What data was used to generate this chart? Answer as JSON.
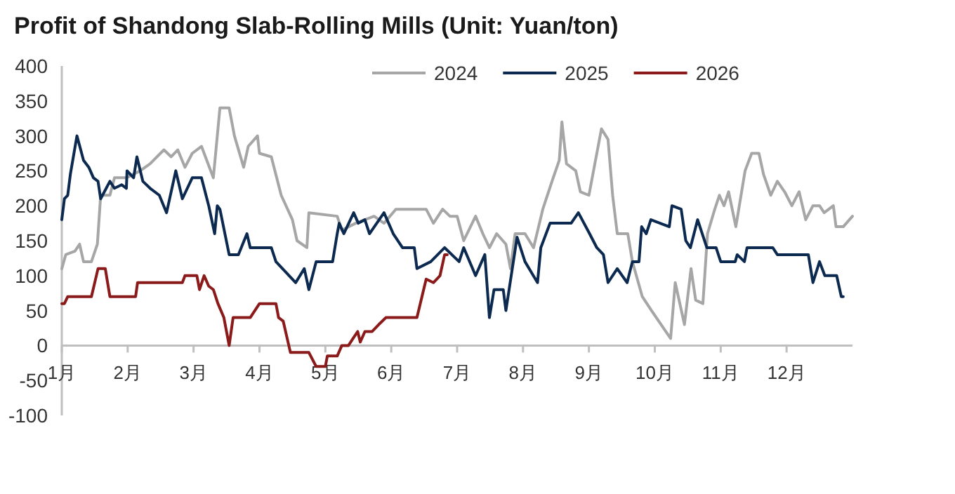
{
  "chart_data": {
    "type": "line",
    "title": "Profit of Shandong Slab-Rolling Mills (Unit: Yuan/ton)",
    "xlim": [
      1,
      13
    ],
    "xticks": [
      {
        "value": 1,
        "label": "1月"
      },
      {
        "value": 2,
        "label": "2月"
      },
      {
        "value": 3,
        "label": "3月"
      },
      {
        "value": 4,
        "label": "4月"
      },
      {
        "value": 5,
        "label": "5月"
      },
      {
        "value": 6,
        "label": "6月"
      },
      {
        "value": 7,
        "label": "7月"
      },
      {
        "value": 8,
        "label": "8月"
      },
      {
        "value": 9,
        "label": "9月"
      },
      {
        "value": 10,
        "label": "10月"
      },
      {
        "value": 11,
        "label": "11月"
      },
      {
        "value": 12,
        "label": "12月"
      }
    ],
    "ylim": [
      -100,
      400
    ],
    "yticks": [
      -100,
      -50,
      0,
      50,
      100,
      150,
      200,
      250,
      300,
      350,
      400
    ],
    "grid": false,
    "legend": "top",
    "series": [
      {
        "name": "2024",
        "color": "#a6a6a6",
        "x": [
          1.0,
          1.06,
          1.2,
          1.27,
          1.33,
          1.45,
          1.54,
          1.59,
          1.73,
          1.8,
          1.98,
          2.19,
          2.34,
          2.55,
          2.66,
          2.76,
          2.87,
          2.98,
          3.12,
          3.3,
          3.4,
          3.54,
          3.62,
          3.76,
          3.83,
          3.97,
          4.0,
          4.18,
          4.33,
          4.5,
          4.57,
          4.72,
          4.75,
          5.18,
          5.25,
          5.46,
          5.74,
          5.89,
          6.07,
          6.53,
          6.64,
          6.78,
          6.89,
          7.0,
          7.1,
          7.28,
          7.39,
          7.49,
          7.6,
          7.74,
          7.81,
          7.88,
          8.03,
          8.16,
          8.3,
          8.44,
          8.55,
          8.59,
          8.66,
          8.8,
          8.87,
          9.0,
          9.08,
          9.19,
          9.29,
          9.36,
          9.43,
          9.59,
          9.66,
          9.81,
          9.95,
          10.24,
          10.31,
          10.45,
          10.55,
          10.62,
          10.73,
          10.8,
          10.91,
          10.98,
          11.05,
          11.12,
          11.23,
          11.37,
          11.47,
          11.58,
          11.65,
          11.76,
          11.86,
          11.97,
          12.08,
          12.19,
          12.29,
          12.4,
          12.5,
          12.57,
          12.71,
          12.75,
          12.86,
          13.0
        ],
        "values": [
          110,
          130,
          135,
          145,
          120,
          120,
          145,
          215,
          215,
          240,
          240,
          250,
          260,
          280,
          270,
          280,
          255,
          275,
          285,
          240,
          340,
          340,
          300,
          255,
          285,
          300,
          275,
          270,
          215,
          180,
          150,
          140,
          190,
          185,
          165,
          175,
          185,
          175,
          195,
          195,
          175,
          195,
          185,
          185,
          150,
          185,
          160,
          140,
          160,
          145,
          110,
          160,
          160,
          140,
          195,
          235,
          265,
          320,
          260,
          250,
          220,
          215,
          255,
          310,
          295,
          215,
          160,
          160,
          120,
          70,
          50,
          10,
          90,
          30,
          110,
          65,
          60,
          160,
          195,
          215,
          200,
          220,
          170,
          250,
          275,
          275,
          245,
          215,
          235,
          220,
          200,
          220,
          180,
          200,
          200,
          190,
          200,
          170,
          170,
          185
        ]
      },
      {
        "name": "2025",
        "color": "#0c2a50",
        "x": [
          1.0,
          1.04,
          1.09,
          1.13,
          1.23,
          1.33,
          1.41,
          1.48,
          1.55,
          1.59,
          1.73,
          1.8,
          1.91,
          1.98,
          1.99,
          2.09,
          2.14,
          2.23,
          2.34,
          2.48,
          2.59,
          2.73,
          2.83,
          2.98,
          3.12,
          3.23,
          3.32,
          3.36,
          3.4,
          3.54,
          3.68,
          3.81,
          3.86,
          4.18,
          4.25,
          4.4,
          4.55,
          4.68,
          4.75,
          4.86,
          5.11,
          5.18,
          5.21,
          5.28,
          5.43,
          5.5,
          5.6,
          5.67,
          5.89,
          6.03,
          6.17,
          6.35,
          6.39,
          6.6,
          6.81,
          7.03,
          7.1,
          7.28,
          7.42,
          7.49,
          7.56,
          7.7,
          7.74,
          7.91,
          8.03,
          8.22,
          8.27,
          8.41,
          8.73,
          8.84,
          9.01,
          9.12,
          9.22,
          9.29,
          9.43,
          9.58,
          9.66,
          9.76,
          9.8,
          9.87,
          9.94,
          10.22,
          10.26,
          10.4,
          10.47,
          10.54,
          10.65,
          10.72,
          10.79,
          10.93,
          11.0,
          11.22,
          11.25,
          11.36,
          11.4,
          11.79,
          11.86,
          12.33,
          12.4,
          12.5,
          12.58,
          12.76,
          12.83,
          12.86
        ],
        "values": [
          180,
          210,
          215,
          245,
          300,
          265,
          255,
          240,
          235,
          210,
          235,
          225,
          230,
          225,
          250,
          240,
          270,
          235,
          225,
          215,
          190,
          250,
          210,
          240,
          240,
          200,
          160,
          200,
          195,
          130,
          130,
          160,
          140,
          140,
          120,
          105,
          90,
          110,
          80,
          120,
          120,
          160,
          175,
          160,
          190,
          175,
          180,
          160,
          190,
          160,
          140,
          140,
          110,
          120,
          140,
          120,
          140,
          100,
          130,
          40,
          80,
          80,
          50,
          155,
          120,
          90,
          140,
          175,
          175,
          190,
          160,
          140,
          130,
          90,
          110,
          90,
          120,
          120,
          170,
          160,
          180,
          170,
          200,
          195,
          150,
          140,
          180,
          160,
          140,
          140,
          120,
          120,
          130,
          120,
          140,
          140,
          130,
          130,
          90,
          120,
          100,
          100,
          70,
          70
        ]
      },
      {
        "name": "2026",
        "color": "#8b1a1a",
        "x": [
          1.0,
          1.04,
          1.09,
          1.45,
          1.55,
          1.66,
          1.73,
          2.12,
          2.15,
          2.83,
          2.87,
          3.05,
          3.09,
          3.16,
          3.23,
          3.3,
          3.37,
          3.46,
          3.54,
          3.6,
          3.86,
          3.93,
          4.0,
          4.25,
          4.29,
          4.36,
          4.47,
          4.75,
          4.86,
          5.0,
          5.03,
          5.18,
          5.25,
          5.35,
          5.42,
          5.49,
          5.53,
          5.6,
          5.71,
          5.81,
          5.92,
          6.39,
          6.53,
          6.64,
          6.74,
          6.81,
          6.85
        ],
        "values": [
          60,
          60,
          70,
          70,
          110,
          110,
          70,
          70,
          90,
          90,
          100,
          100,
          80,
          100,
          85,
          80,
          60,
          40,
          0,
          40,
          40,
          50,
          60,
          60,
          40,
          35,
          -10,
          -10,
          -30,
          -30,
          -15,
          -15,
          0,
          0,
          10,
          20,
          5,
          20,
          20,
          30,
          40,
          40,
          95,
          90,
          100,
          130,
          130
        ]
      }
    ]
  }
}
